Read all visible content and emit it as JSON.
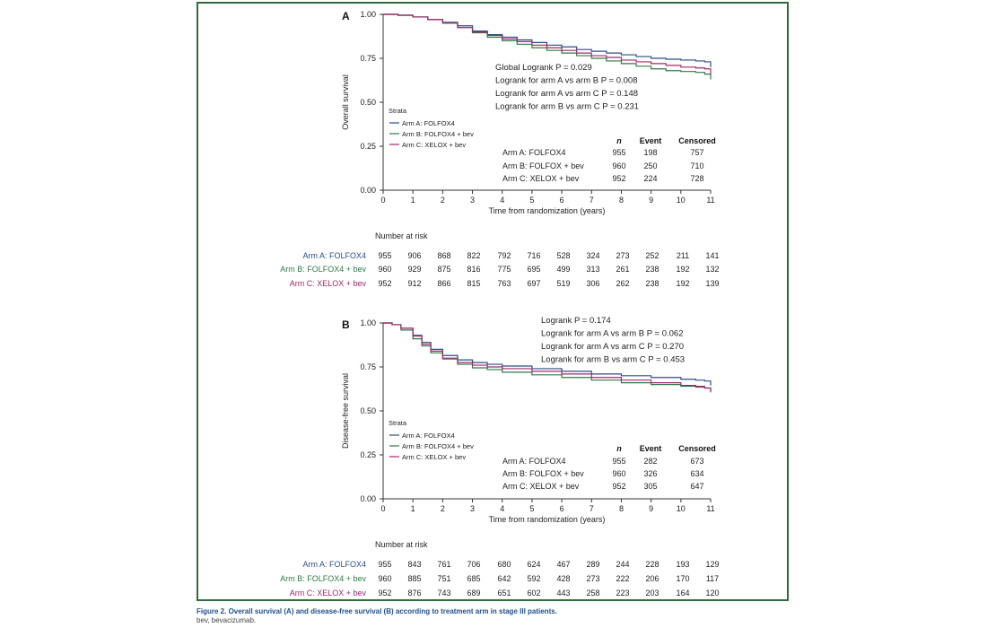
{
  "colors": {
    "A": "#2b4d8e",
    "B": "#2e7a46",
    "C": "#a3286a",
    "axis": "#333333",
    "frame": "#2e6b3a"
  },
  "chart_data": [
    {
      "type": "line",
      "panel": "A",
      "ylabel": "Overall survival",
      "xlabel": "Time from randomization (years)",
      "xlim": [
        0,
        11
      ],
      "ylim": [
        0,
        1
      ],
      "xticks": [
        "0",
        "1",
        "2",
        "3",
        "4",
        "5",
        "6",
        "7",
        "8",
        "9",
        "10",
        "11"
      ],
      "yticks": [
        "0.00",
        "0.25",
        "0.50",
        "0.75",
        "1.00"
      ],
      "strata_title": "Strata",
      "legend": [
        "Arm A: FOLFOX4",
        "Arm B: FOLFOX4 + bev",
        "Arm C: XELOX + bev"
      ],
      "pvalues": [
        "Global Logrank P = 0.029",
        "Logrank for arm A vs arm B P = 0.008",
        "Logrank for arm A vs arm C P = 0.148",
        "Logrank for arm B vs arm C P = 0.231"
      ],
      "summary_headers": [
        "n",
        "Event",
        "Censored"
      ],
      "summary_rows": [
        {
          "label": "Arm A: FOLFOX4",
          "n": "955",
          "event": "198",
          "censored": "757"
        },
        {
          "label": "Arm B: FOLFOX + bev",
          "n": "960",
          "event": "250",
          "censored": "710"
        },
        {
          "label": "Arm C: XELOX + bev",
          "n": "952",
          "event": "224",
          "censored": "728"
        }
      ],
      "series": [
        {
          "name": "Arm A: FOLFOX4",
          "x": [
            0,
            0.5,
            1,
            1.5,
            2,
            2.5,
            3,
            3.5,
            4,
            4.5,
            5,
            5.5,
            6,
            6.5,
            7,
            7.5,
            8,
            8.5,
            9,
            9.5,
            10,
            10.5,
            10.8,
            11
          ],
          "y": [
            1,
            0.995,
            0.985,
            0.97,
            0.955,
            0.935,
            0.905,
            0.885,
            0.87,
            0.855,
            0.84,
            0.825,
            0.815,
            0.8,
            0.79,
            0.78,
            0.77,
            0.76,
            0.75,
            0.745,
            0.74,
            0.735,
            0.73,
            0.7
          ]
        },
        {
          "name": "Arm B: FOLFOX4 + bev",
          "x": [
            0,
            0.5,
            1,
            1.5,
            2,
            2.5,
            3,
            3.5,
            4,
            4.5,
            5,
            5.5,
            6,
            6.5,
            7,
            7.5,
            8,
            8.5,
            9,
            9.5,
            10,
            10.5,
            10.8,
            11
          ],
          "y": [
            1,
            0.995,
            0.985,
            0.97,
            0.95,
            0.925,
            0.895,
            0.87,
            0.85,
            0.83,
            0.81,
            0.795,
            0.78,
            0.765,
            0.75,
            0.735,
            0.72,
            0.705,
            0.69,
            0.68,
            0.675,
            0.67,
            0.66,
            0.63
          ]
        },
        {
          "name": "Arm C: XELOX + bev",
          "x": [
            0,
            0.5,
            1,
            1.5,
            2,
            2.5,
            3,
            3.5,
            4,
            4.5,
            5,
            5.5,
            6,
            6.5,
            7,
            7.5,
            8,
            8.5,
            9,
            9.5,
            10,
            10.5,
            10.8,
            11
          ],
          "y": [
            1,
            0.995,
            0.985,
            0.97,
            0.95,
            0.925,
            0.9,
            0.88,
            0.86,
            0.845,
            0.825,
            0.81,
            0.795,
            0.78,
            0.765,
            0.755,
            0.74,
            0.73,
            0.72,
            0.71,
            0.7,
            0.695,
            0.69,
            0.66
          ]
        }
      ],
      "risk_title": "Number at risk",
      "risk_rows": [
        {
          "label": "Arm A: FOLFOX4",
          "values": [
            "955",
            "906",
            "868",
            "822",
            "792",
            "716",
            "528",
            "324",
            "273",
            "252",
            "211",
            "141"
          ]
        },
        {
          "label": "Arm B: FOLFOX4 + bev",
          "values": [
            "960",
            "929",
            "875",
            "816",
            "775",
            "695",
            "499",
            "313",
            "261",
            "238",
            "192",
            "132"
          ]
        },
        {
          "label": "Arm C: XELOX + bev",
          "values": [
            "952",
            "912",
            "866",
            "815",
            "763",
            "697",
            "519",
            "306",
            "262",
            "238",
            "192",
            "139"
          ]
        }
      ]
    },
    {
      "type": "line",
      "panel": "B",
      "ylabel": "Disease-free survival",
      "xlabel": "Time from randomization (years)",
      "xlim": [
        0,
        11
      ],
      "ylim": [
        0,
        1
      ],
      "xticks": [
        "0",
        "1",
        "2",
        "3",
        "4",
        "5",
        "6",
        "7",
        "8",
        "9",
        "10",
        "11"
      ],
      "yticks": [
        "0.00",
        "0.25",
        "0.50",
        "0.75",
        "1.00"
      ],
      "strata_title": "Strata",
      "legend": [
        "Arm A: FOLFOX4",
        "Arm B: FOLFOX4 + bev",
        "Arm C: XELOX + bev"
      ],
      "pvalues": [
        "Logrank P = 0.174",
        "Logrank for arm A vs arm B P = 0.062",
        "Logrank for arm A vs arm C P = 0.270",
        "Logrank for arm B vs arm C P = 0.453"
      ],
      "summary_headers": [
        "n",
        "Event",
        "Censored"
      ],
      "summary_rows": [
        {
          "label": "Arm A: FOLFOX4",
          "n": "955",
          "event": "282",
          "censored": "673"
        },
        {
          "label": "Arm B: FOLFOX + bev",
          "n": "960",
          "event": "326",
          "censored": "634"
        },
        {
          "label": "Arm C: XELOX + bev",
          "n": "952",
          "event": "305",
          "censored": "647"
        }
      ],
      "series": [
        {
          "name": "Arm A: FOLFOX4",
          "x": [
            0,
            0.3,
            0.6,
            1,
            1.3,
            1.6,
            2,
            2.5,
            3,
            3.5,
            4,
            5,
            6,
            7,
            8,
            9,
            10,
            10.5,
            10.8,
            11
          ],
          "y": [
            1,
            0.99,
            0.97,
            0.93,
            0.89,
            0.85,
            0.815,
            0.79,
            0.775,
            0.765,
            0.755,
            0.74,
            0.725,
            0.71,
            0.7,
            0.69,
            0.68,
            0.675,
            0.67,
            0.645
          ]
        },
        {
          "name": "Arm B: FOLFOX4 + bev",
          "x": [
            0,
            0.3,
            0.6,
            1,
            1.3,
            1.6,
            2,
            2.5,
            3,
            3.5,
            4,
            5,
            6,
            7,
            8,
            9,
            10,
            10.5,
            10.8,
            11
          ],
          "y": [
            1,
            0.99,
            0.96,
            0.91,
            0.87,
            0.83,
            0.795,
            0.765,
            0.745,
            0.735,
            0.72,
            0.705,
            0.69,
            0.675,
            0.66,
            0.65,
            0.64,
            0.635,
            0.63,
            0.605
          ]
        },
        {
          "name": "Arm C: XELOX + bev",
          "x": [
            0,
            0.3,
            0.6,
            1,
            1.3,
            1.6,
            2,
            2.5,
            3,
            3.5,
            4,
            5,
            6,
            7,
            8,
            9,
            10,
            10.5,
            10.8,
            11
          ],
          "y": [
            1,
            0.99,
            0.97,
            0.925,
            0.88,
            0.84,
            0.8,
            0.775,
            0.76,
            0.75,
            0.74,
            0.725,
            0.71,
            0.69,
            0.675,
            0.66,
            0.645,
            0.64,
            0.63,
            0.61
          ]
        }
      ],
      "risk_title": "Number at risk",
      "risk_rows": [
        {
          "label": "Arm A: FOLFOX4",
          "values": [
            "955",
            "843",
            "761",
            "706",
            "680",
            "624",
            "467",
            "289",
            "244",
            "228",
            "193",
            "129"
          ]
        },
        {
          "label": "Arm B: FOLFOX4 + bev",
          "values": [
            "960",
            "885",
            "751",
            "685",
            "642",
            "592",
            "428",
            "273",
            "222",
            "206",
            "170",
            "117"
          ]
        },
        {
          "label": "Arm C: XELOX + bev",
          "values": [
            "952",
            "876",
            "743",
            "689",
            "651",
            "602",
            "443",
            "258",
            "223",
            "203",
            "164",
            "120"
          ]
        }
      ]
    }
  ],
  "caption": {
    "title": "Figure 2. Overall survival (A) and disease-free survival (B) according to treatment arm in stage III patients.",
    "note": "bev, bevacizumab."
  }
}
